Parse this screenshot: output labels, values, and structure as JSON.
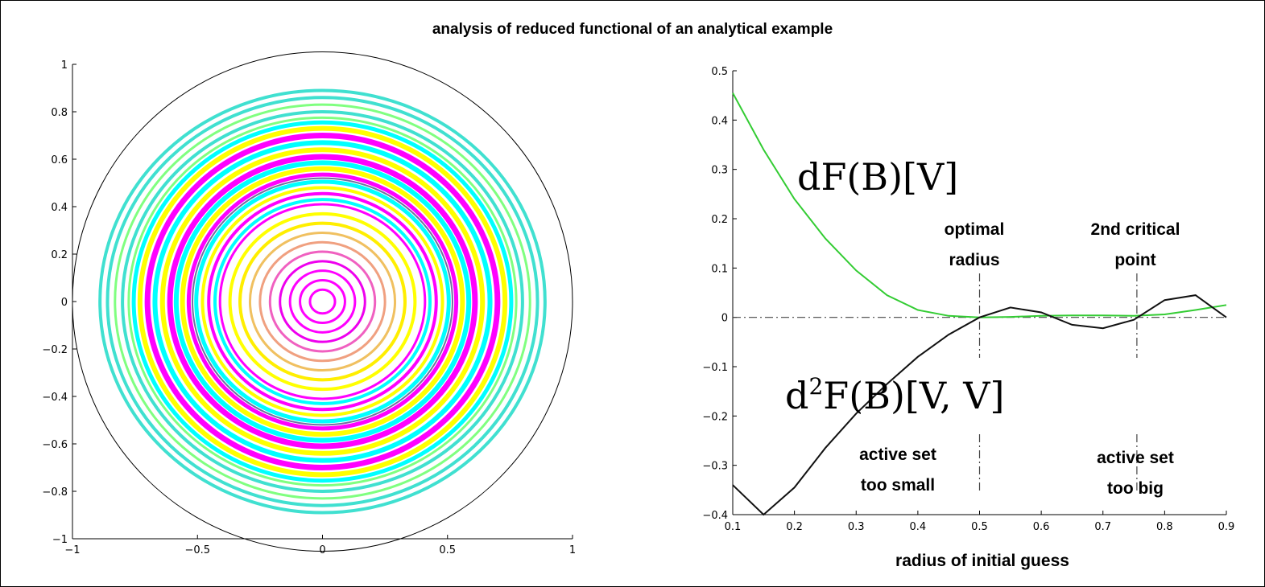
{
  "figure": {
    "title": "analysis of reduced functional of an analytical example"
  },
  "chart_data": [
    {
      "type": "contour",
      "name": "disk contour plot",
      "xlim": [
        -1,
        1
      ],
      "ylim": [
        -1,
        1
      ],
      "xticks": [
        "−1",
        "−0.5",
        "0",
        "0.5",
        "1"
      ],
      "yticks": [
        "1",
        "0.8",
        "0.6",
        "0.4",
        "0.2",
        "0",
        "−0.2",
        "−0.4",
        "−0.6",
        "−0.8",
        "−1"
      ],
      "boundary_circle_radius": 1,
      "rings": [
        {
          "r": 0.05,
          "color": "#ff00ff",
          "w": 3
        },
        {
          "r": 0.09,
          "color": "#ff00ff",
          "w": 3
        },
        {
          "r": 0.13,
          "color": "#ff00ff",
          "w": 3
        },
        {
          "r": 0.17,
          "color": "#ee00ee",
          "w": 3
        },
        {
          "r": 0.21,
          "color": "#f060c0",
          "w": 3
        },
        {
          "r": 0.25,
          "color": "#f0a080",
          "w": 3
        },
        {
          "r": 0.29,
          "color": "#f0c060",
          "w": 3
        },
        {
          "r": 0.33,
          "color": "#ffee00",
          "w": 4
        },
        {
          "r": 0.37,
          "color": "#ffff00",
          "w": 4
        },
        {
          "r": 0.41,
          "color": "#ff00ff",
          "w": 3
        },
        {
          "r": 0.43,
          "color": "#00ffff",
          "w": 4
        },
        {
          "r": 0.455,
          "color": "#ff00ff",
          "w": 4
        },
        {
          "r": 0.48,
          "color": "#ffff00",
          "w": 4
        },
        {
          "r": 0.505,
          "color": "#00ffff",
          "w": 5
        },
        {
          "r": 0.52,
          "color": "#7070a0",
          "w": 2
        },
        {
          "r": 0.535,
          "color": "#ff00ff",
          "w": 5
        },
        {
          "r": 0.56,
          "color": "#ffff00",
          "w": 6
        },
        {
          "r": 0.585,
          "color": "#00ffff",
          "w": 6
        },
        {
          "r": 0.61,
          "color": "#ff00ff",
          "w": 7
        },
        {
          "r": 0.64,
          "color": "#ffff00",
          "w": 6
        },
        {
          "r": 0.67,
          "color": "#00ffff",
          "w": 6
        },
        {
          "r": 0.7,
          "color": "#ff00ff",
          "w": 7
        },
        {
          "r": 0.73,
          "color": "#ffff00",
          "w": 6
        },
        {
          "r": 0.755,
          "color": "#00ffff",
          "w": 5
        },
        {
          "r": 0.775,
          "color": "#80ff80",
          "w": 3
        },
        {
          "r": 0.8,
          "color": "#40e0d0",
          "w": 4
        },
        {
          "r": 0.83,
          "color": "#80ff80",
          "w": 3
        },
        {
          "r": 0.86,
          "color": "#40e0d0",
          "w": 4
        },
        {
          "r": 0.89,
          "color": "#40e0d0",
          "w": 4
        }
      ]
    },
    {
      "type": "line",
      "xlim": [
        0.1,
        0.9
      ],
      "ylim": [
        -0.4,
        0.5
      ],
      "xticks": [
        "0.1",
        "0.2",
        "0.3",
        "0.4",
        "0.5",
        "0.6",
        "0.7",
        "0.8",
        "0.9"
      ],
      "yticks": [
        "0.5",
        "0.4",
        "0.3",
        "0.2",
        "0.1",
        "0",
        "−0.1",
        "−0.2",
        "−0.3",
        "−0.4"
      ],
      "xlabel": "radius of initial guess",
      "series": [
        {
          "name": "dF(B)[V]",
          "color": "#33cc33",
          "x": [
            0.1,
            0.15,
            0.2,
            0.25,
            0.3,
            0.35,
            0.4,
            0.45,
            0.5,
            0.55,
            0.6,
            0.65,
            0.7,
            0.75,
            0.8,
            0.85,
            0.9
          ],
          "y": [
            0.455,
            0.34,
            0.24,
            0.16,
            0.095,
            0.045,
            0.015,
            0.003,
            0.0,
            0.001,
            0.003,
            0.004,
            0.004,
            0.003,
            0.006,
            0.015,
            0.025
          ]
        },
        {
          "name": "d2F(B)[V,V]",
          "color": "#111111",
          "x": [
            0.1,
            0.15,
            0.2,
            0.25,
            0.3,
            0.35,
            0.4,
            0.45,
            0.5,
            0.55,
            0.6,
            0.65,
            0.7,
            0.75,
            0.8,
            0.85,
            0.9
          ],
          "y": [
            -0.34,
            -0.4,
            -0.345,
            -0.265,
            -0.195,
            -0.135,
            -0.08,
            -0.035,
            0.0,
            0.02,
            0.01,
            -0.015,
            -0.022,
            -0.005,
            0.035,
            0.045,
            0.0
          ]
        }
      ],
      "reference_lines": {
        "horizontal_y": 0,
        "vertical_x": [
          0.5,
          0.755
        ]
      },
      "annotations": {
        "df_label": "dF(B)[V]",
        "d2f_label_d": "d",
        "d2f_label_sup": "2",
        "d2f_label_rest": "F(B)[V, V]",
        "optimal_1": "optimal",
        "optimal_2": "radius",
        "critical_1": "2nd critical",
        "critical_2": "point",
        "small_1": "active set",
        "small_2": "too small",
        "big_1": "active set",
        "big_2": "too big"
      }
    }
  ]
}
